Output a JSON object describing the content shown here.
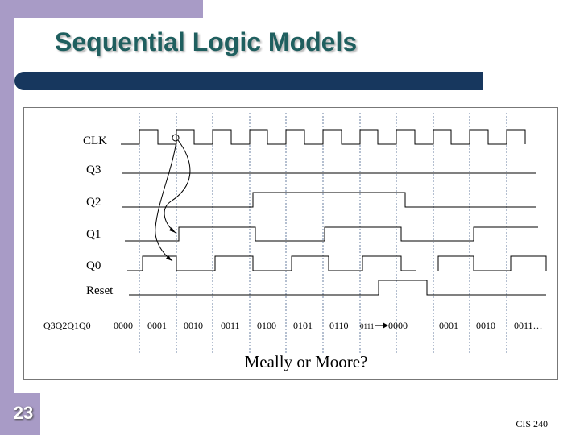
{
  "slide": {
    "title": "Sequential Logic Models",
    "number": "23",
    "footer": "CIS 240",
    "question": "Meally or Moore?"
  },
  "signals": [
    "CLK",
    "Q3",
    "Q2",
    "Q1",
    "Q0",
    "Reset"
  ],
  "state_axis_label": "Q3Q2Q1Q0",
  "states": [
    "0000",
    "0001",
    "0010",
    "0011",
    "0100",
    "0101",
    "0110",
    "0000",
    "0001",
    "0010",
    "0011…"
  ],
  "transition_from": "0111",
  "colors": {
    "title": "#1f5f5f",
    "accent_bar": "#17375e",
    "side": "#a89bc6"
  }
}
